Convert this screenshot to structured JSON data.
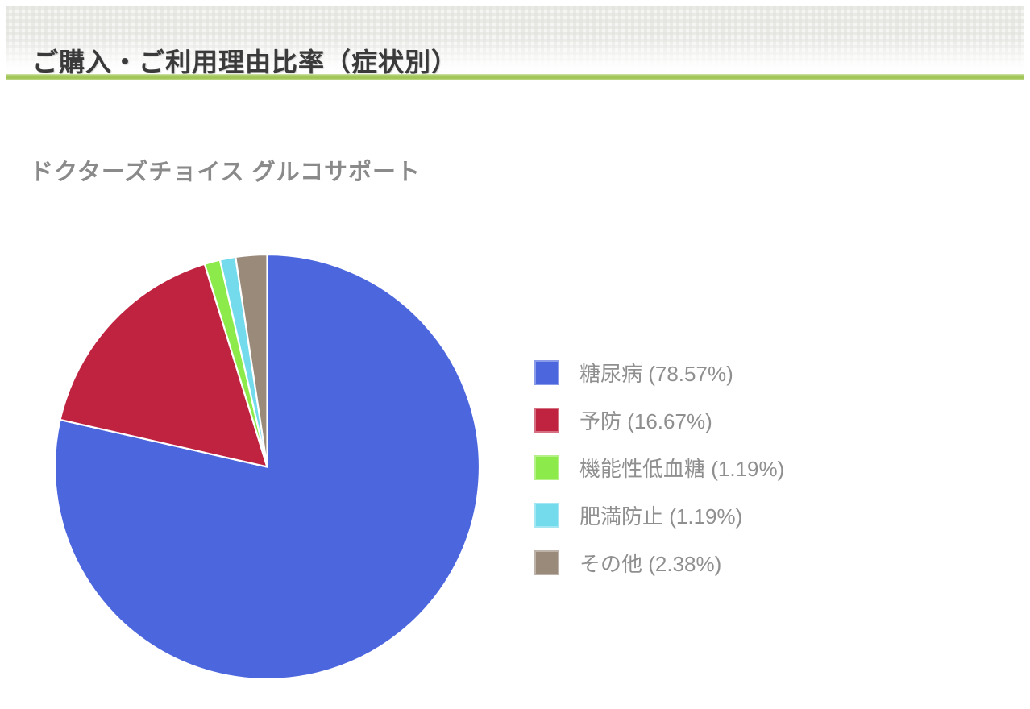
{
  "header": {
    "title": "ご購入・ご利用理由比率（症状別）"
  },
  "divider_color": "#a3c75c",
  "chart_data": {
    "type": "pie",
    "title": "ドクターズチョイス グルコサポート",
    "direction": "clockwise",
    "start_angle_deg": 0,
    "legend_position": "right",
    "slice_border_color": "#ffffff",
    "slices": [
      {
        "label": "糖尿病",
        "value": 78.57,
        "color": "#4c66de",
        "legend_label": "糖尿病 (78.57%)"
      },
      {
        "label": "予防",
        "value": 16.67,
        "color": "#bf2340",
        "legend_label": "予防 (16.67%)"
      },
      {
        "label": "機能性低血糖",
        "value": 1.19,
        "color": "#8ceb4b",
        "legend_label": "機能性低血糖 (1.19%)"
      },
      {
        "label": "肥満防止",
        "value": 1.19,
        "color": "#74dbec",
        "legend_label": "肥満防止 (1.19%)"
      },
      {
        "label": "その他",
        "value": 2.38,
        "color": "#9a8a7a",
        "legend_label": "その他 (2.38%)"
      }
    ]
  }
}
